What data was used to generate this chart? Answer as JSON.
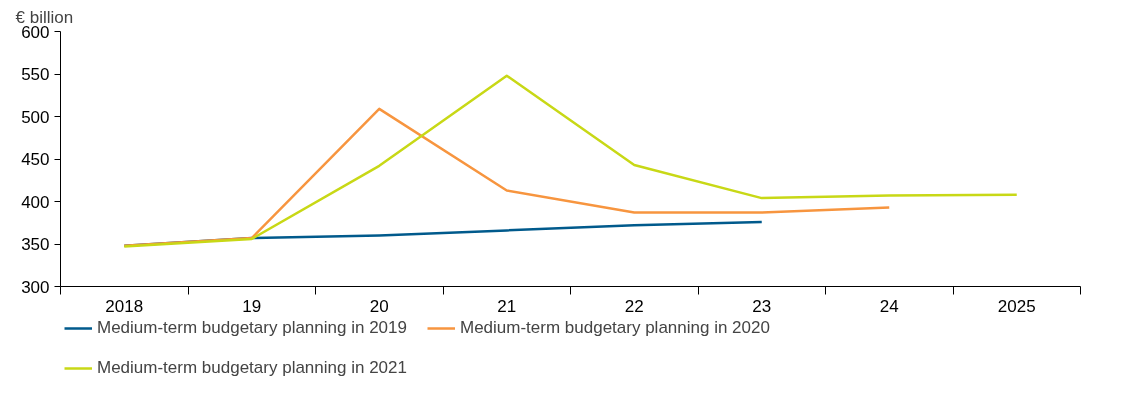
{
  "chart_data": {
    "type": "line",
    "ylabel": "€ billion",
    "categories": [
      "2018",
      "19",
      "20",
      "21",
      "22",
      "23",
      "24",
      "2025"
    ],
    "series": [
      {
        "name": "Medium-term budgetary planning in 2019",
        "color": "#005a8c",
        "values": [
          348,
          357,
          360,
          366,
          372,
          376,
          null,
          null
        ]
      },
      {
        "name": "Medium-term budgetary planning in 2020",
        "color": "#f7953f",
        "values": [
          348,
          357,
          509,
          413,
          387,
          387,
          393,
          null
        ]
      },
      {
        "name": "Medium-term budgetary planning in 2021",
        "color": "#c8d816",
        "values": [
          347,
          356,
          442,
          548,
          443,
          404,
          407,
          408
        ]
      }
    ],
    "ylim": [
      300,
      600
    ],
    "yticks": [
      300,
      350,
      400,
      450,
      500,
      550,
      600
    ],
    "grid": false,
    "legend": "bottom",
    "marker": "none",
    "line_style": "solid"
  }
}
